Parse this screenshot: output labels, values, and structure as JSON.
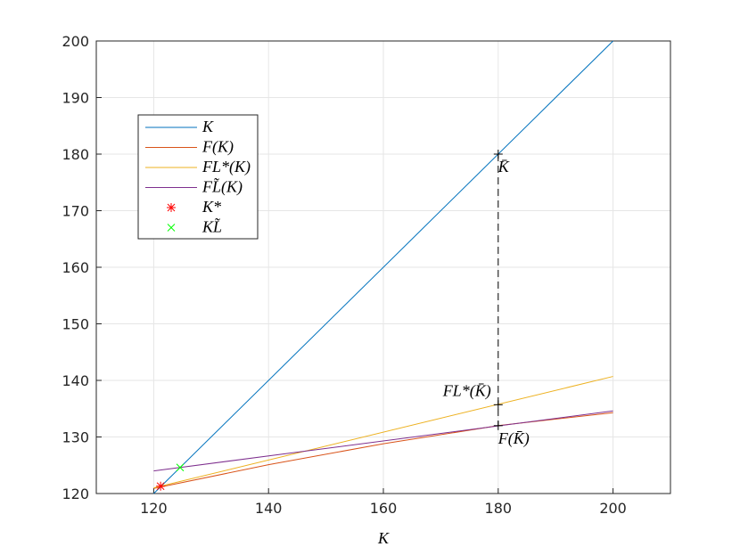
{
  "chart_data": {
    "type": "line",
    "xlabel": "K",
    "xlim": [
      110,
      210
    ],
    "xticks": [
      120,
      140,
      160,
      180,
      200
    ],
    "ylim": [
      120,
      200
    ],
    "yticks": [
      120,
      130,
      140,
      150,
      160,
      170,
      180,
      190,
      200
    ],
    "grid": true,
    "series": [
      {
        "name": "K",
        "color": "#0072BD",
        "x": [
          120,
          200
        ],
        "values": [
          120,
          200
        ]
      },
      {
        "name": "F(K)",
        "color": "#D95319",
        "x": [
          120,
          140,
          160,
          180,
          200
        ],
        "values": [
          120.9,
          125.1,
          128.8,
          132,
          134.3
        ]
      },
      {
        "name": "FL*(K)",
        "color": "#EDB120",
        "x": [
          120,
          200
        ],
        "values": [
          121,
          140.7
        ]
      },
      {
        "name": "FL̃(K)",
        "color": "#7E2F8E",
        "x": [
          120,
          200
        ],
        "values": [
          124,
          134.6
        ]
      },
      {
        "name": "K*",
        "color": "#FF0000",
        "marker": "*",
        "x": [
          121.2
        ],
        "values": [
          121.3
        ]
      },
      {
        "name": "KL̃",
        "color": "#00FF00",
        "marker": "x",
        "x": [
          124.6
        ],
        "values": [
          124.6
        ]
      }
    ],
    "annotations": [
      {
        "text": "K̄",
        "x": 180,
        "y": 180
      },
      {
        "text": "FL*(K̄)",
        "x": 180,
        "y": 135.7
      },
      {
        "text": "F(K̄)",
        "x": 180,
        "y": 132
      }
    ]
  }
}
